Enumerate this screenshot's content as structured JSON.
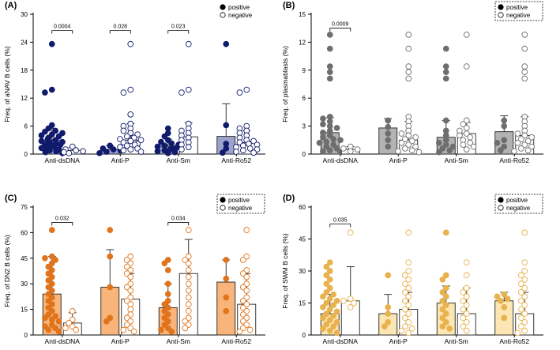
{
  "figure": {
    "legend_positive": "positive",
    "legend_negative": "negative"
  },
  "chart_data": [
    {
      "type": "bar",
      "panel_label": "(A)",
      "title": "",
      "xlabel": "",
      "ylabel": "Freq. of aNAV B cells (%)",
      "ylim": [
        0,
        30
      ],
      "yticks": [
        0,
        6,
        12,
        18,
        24,
        30
      ],
      "grid": false,
      "legend_position": "top-right",
      "legend_boxed": false,
      "colors": {
        "positive_bar": "#9ba2cc",
        "positive_point": "#101b6c",
        "negative_bar": "#ffffff",
        "negative_point": "#ffffff",
        "point_stroke": "#101b6c"
      },
      "categories": [
        "Anti-dsDNA",
        "Anti-P",
        "Anti-Sm",
        "Anti-Ro52"
      ],
      "series": [
        {
          "name": "positive",
          "means": [
            3.0,
            1.0,
            1.7,
            3.8
          ],
          "sd": [
            2.5,
            0.8,
            1.5,
            7.0
          ],
          "points": [
            [
              23.6,
              13.8,
              13.2,
              6.2,
              5.5,
              5.0,
              4.8,
              4.5,
              4.2,
              4.0,
              3.8,
              3.5,
              3.2,
              3.0,
              2.8,
              2.6,
              2.5,
              2.3,
              2.1,
              2.0,
              1.8,
              1.6,
              1.5,
              1.3,
              1.2,
              1.0,
              0.8,
              0.6,
              0.4,
              0.2
            ],
            [
              1.8,
              1.2,
              1.0,
              0.8,
              0.5,
              0.2
            ],
            [
              5.5,
              4.5,
              3.8,
              3.0,
              2.6,
              2.3,
              2.0,
              1.8,
              1.6,
              1.4,
              1.2,
              1.0,
              0.8,
              0.6,
              0.4,
              0.2
            ],
            [
              23.6,
              6.2,
              2.2,
              1.2,
              0.3
            ]
          ]
        },
        {
          "name": "negative",
          "means": [
            0.8,
            3.0,
            3.7,
            2.5
          ],
          "sd": [
            0.6,
            3.5,
            3.0,
            2.5
          ],
          "points": [
            [
              1.6,
              1.0,
              0.8,
              0.6,
              0.4,
              0.2
            ],
            [
              23.6,
              13.8,
              13.2,
              8.5,
              6.5,
              6.0,
              5.5,
              5.0,
              4.5,
              4.2,
              3.8,
              3.5,
              3.2,
              3.0,
              2.8,
              2.5,
              2.2,
              2.0,
              1.8,
              1.5,
              1.2,
              1.0,
              0.8,
              0.5
            ],
            [
              23.6,
              13.8,
              13.2,
              6.5,
              5.5,
              5.0,
              4.5,
              4.0,
              3.5,
              3.0,
              2.5,
              2.0,
              1.5,
              1.0
            ],
            [
              13.8,
              13.2,
              6.0,
              5.5,
              5.0,
              4.5,
              4.0,
              3.5,
              3.0,
              2.8,
              2.5,
              2.2,
              2.0,
              1.8,
              1.5,
              1.2,
              1.0,
              0.8,
              0.5,
              0.3
            ]
          ]
        }
      ],
      "annotations": [
        {
          "category": "Anti-dsDNA",
          "text": "0.0004",
          "y": 26.5
        },
        {
          "category": "Anti-P",
          "text": "0.028",
          "y": 26.5
        },
        {
          "category": "Anti-Sm",
          "text": "0.023",
          "y": 26.5
        }
      ]
    },
    {
      "type": "bar",
      "panel_label": "(B)",
      "title": "",
      "xlabel": "",
      "ylabel": "Freq. of plasmablasts (%)",
      "ylim": [
        0,
        15
      ],
      "yticks": [
        0,
        3,
        6,
        9,
        12,
        15
      ],
      "grid": false,
      "legend_position": "top-right",
      "legend_boxed": true,
      "colors": {
        "positive_bar": "#b3b3b3",
        "positive_point": "#6e6e6e",
        "negative_bar": "#ffffff",
        "negative_point": "#ffffff",
        "point_stroke": "#6e6e6e"
      },
      "categories": [
        "Anti-dsDNA",
        "Anti-P",
        "Anti-Sm",
        "Anti-Ro52"
      ],
      "series": [
        {
          "name": "positive",
          "means": [
            2.3,
            2.8,
            1.8,
            2.4
          ],
          "sd": [
            1.6,
            1.0,
            1.8,
            1.7
          ],
          "points": [
            [
              12.8,
              11.3,
              9.4,
              8.8,
              8.1,
              4.0,
              3.8,
              3.5,
              3.2,
              3.0,
              2.8,
              2.5,
              2.3,
              2.0,
              1.8,
              1.6,
              1.5,
              1.3,
              1.2,
              1.0,
              0.8,
              0.6,
              0.4,
              0.3,
              0.2
            ],
            [
              3.6,
              2.9,
              2.2,
              1.5,
              0.8
            ],
            [
              11.3,
              9.4,
              8.8,
              8.1,
              3.6,
              2.5,
              2.0,
              1.5,
              1.2,
              1.0,
              0.8,
              0.6,
              0.4,
              0.2
            ],
            [
              3.6,
              3.0,
              1.5,
              1.2,
              0.8,
              0.4
            ]
          ]
        },
        {
          "name": "negative",
          "means": [
            0.5,
            1.5,
            2.2,
            2.0
          ],
          "sd": [
            0.3,
            2.0,
            1.2,
            2.0
          ],
          "points": [
            [
              0.8,
              0.6,
              0.5,
              0.3
            ],
            [
              12.8,
              11.3,
              9.4,
              8.8,
              8.1,
              4.0,
              3.5,
              3.0,
              2.5,
              2.2,
              2.0,
              1.8,
              1.6,
              1.4,
              1.2,
              1.0,
              0.8,
              0.6,
              0.4,
              0.3,
              0.2
            ],
            [
              12.8,
              9.4,
              3.6,
              3.2,
              2.8,
              2.5,
              2.2,
              2.0,
              1.8,
              1.5,
              1.2,
              1.0,
              0.8,
              0.5
            ],
            [
              12.8,
              11.3,
              9.4,
              8.8,
              8.1,
              4.0,
              3.5,
              3.0,
              2.5,
              2.2,
              2.0,
              1.8,
              1.6,
              1.4,
              1.2,
              1.0,
              0.8,
              0.6,
              0.4,
              0.3
            ]
          ]
        }
      ],
      "annotations": [
        {
          "category": "Anti-dsDNA",
          "text": "0.0009",
          "y": 13.5
        }
      ]
    },
    {
      "type": "bar",
      "panel_label": "(C)",
      "title": "",
      "xlabel": "",
      "ylabel": "Freq. of DN2 B cells (%)",
      "ylim": [
        0,
        75
      ],
      "yticks": [
        0,
        15,
        30,
        45,
        60,
        75
      ],
      "grid": false,
      "legend_position": "top-right",
      "legend_boxed": true,
      "colors": {
        "positive_bar": "#f8b47a",
        "positive_point": "#e0741c",
        "negative_bar": "#ffffff",
        "negative_point": "#ffffff",
        "point_stroke": "#e0741c"
      },
      "categories": [
        "Anti-dsDNA",
        "Anti-P",
        "Anti-Sm",
        "Anti-Ro52"
      ],
      "series": [
        {
          "name": "positive",
          "means": [
            24,
            28,
            16,
            31
          ],
          "sd": [
            22,
            22,
            14,
            13
          ],
          "points": [
            [
              61.5,
              46,
              45,
              44,
              42,
              40,
              38,
              36,
              34,
              32,
              30,
              28,
              26,
              24,
              22,
              20,
              18,
              16,
              14,
              12,
              11,
              10,
              9,
              8,
              6,
              5,
              4,
              3,
              2
            ],
            [
              61.5,
              46,
              28,
              10,
              8
            ],
            [
              44,
              42,
              38,
              30,
              24,
              20,
              18,
              16,
              14,
              12,
              10,
              8,
              6,
              4,
              3,
              2
            ],
            [
              44,
              33,
              22,
              14
            ]
          ]
        },
        {
          "name": "negative",
          "means": [
            7,
            21,
            36,
            18
          ],
          "sd": [
            6,
            15,
            20,
            18
          ],
          "points": [
            [
              14,
              9,
              7,
              5,
              4,
              3
            ],
            [
              46,
              44,
              42,
              40,
              38,
              36,
              34,
              30,
              28,
              26,
              22,
              20,
              18,
              15,
              12,
              10,
              8,
              6,
              4,
              3,
              2
            ],
            [
              61.5,
              46,
              44,
              42,
              38,
              34,
              30,
              26,
              22,
              18,
              14,
              10,
              8,
              6,
              4
            ],
            [
              61.5,
              46,
              44,
              38,
              36,
              34,
              30,
              28,
              26,
              22,
              20,
              18,
              16,
              14,
              12,
              10,
              8,
              6,
              4,
              3,
              2
            ]
          ]
        }
      ],
      "annotations": [
        {
          "category": "Anti-dsDNA",
          "text": "0.032",
          "y": 66
        },
        {
          "category": "Anti-Sm",
          "text": "0.034",
          "y": 66
        }
      ]
    },
    {
      "type": "bar",
      "panel_label": "(D)",
      "title": "",
      "xlabel": "",
      "ylabel": "Freq. of SWM B cells (%)",
      "ylim": [
        0,
        60
      ],
      "yticks": [
        0,
        15,
        30,
        45,
        60
      ],
      "grid": false,
      "legend_position": "top-right",
      "legend_boxed": true,
      "colors": {
        "positive_bar": "#fbe6b4",
        "positive_point": "#e8b24e",
        "negative_bar": "#ffffff",
        "negative_point": "#ffffff",
        "point_stroke": "#e8b24e"
      },
      "categories": [
        "Anti-dsDNA",
        "Anti-P",
        "Anti-Sm",
        "Anti-Ro52"
      ],
      "series": [
        {
          "name": "positive",
          "means": [
            10,
            10,
            15,
            16
          ],
          "sd": [
            9,
            9,
            8,
            4
          ],
          "points": [
            [
              34,
              32,
              30,
              28,
              26,
              24,
              22,
              20,
              19,
              18,
              17,
              16,
              15,
              14,
              13,
              12,
              11,
              10,
              9,
              8,
              7,
              6,
              5,
              4,
              3,
              2,
              1
            ],
            [
              28,
              13,
              10,
              6,
              4
            ],
            [
              48,
              28,
              26,
              22,
              20,
              18,
              16,
              14,
              12,
              10,
              8,
              6,
              4,
              3
            ],
            [
              19,
              18,
              17,
              16,
              13,
              8
            ]
          ]
        },
        {
          "name": "negative",
          "means": [
            16,
            12,
            10,
            10
          ],
          "sd": [
            16,
            8,
            12,
            10
          ],
          "points": [
            [
              48,
              17,
              16,
              15,
              13
            ],
            [
              48,
              34,
              30,
              28,
              26,
              24,
              22,
              20,
              18,
              16,
              14,
              12,
              10,
              8,
              6,
              4,
              3,
              2,
              1
            ],
            [
              34,
              28,
              22,
              20,
              18,
              16,
              14,
              12,
              10,
              8,
              6,
              4,
              2
            ],
            [
              48,
              34,
              30,
              28,
              26,
              24,
              22,
              20,
              18,
              16,
              14,
              12,
              10,
              8,
              6,
              4,
              2,
              1
            ]
          ]
        }
      ],
      "annotations": [
        {
          "category": "Anti-dsDNA",
          "text": "0.035",
          "y": 52
        }
      ]
    }
  ]
}
